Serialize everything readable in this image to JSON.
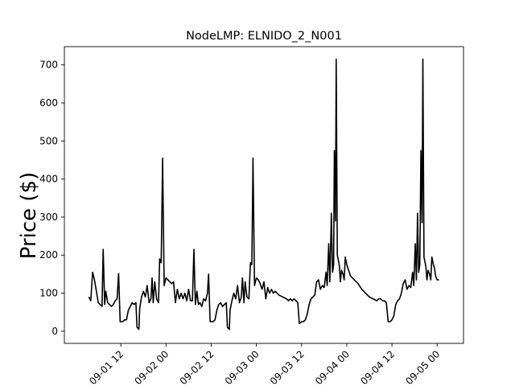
{
  "chart_data": {
    "type": "line",
    "title": "NodeLMP: ELNIDO_2_N001",
    "xlabel": "",
    "ylabel": "Price ($)",
    "x_tick_labels": [
      "09-01 12",
      "09-02 00",
      "09-02 12",
      "09-03 00",
      "09-03 12",
      "09-04 00",
      "09-04 12",
      "09-05 00"
    ],
    "x_ticks_hours": [
      12,
      24,
      36,
      48,
      60,
      72,
      84,
      96
    ],
    "y_tick_labels": [
      "0",
      "100",
      "200",
      "300",
      "400",
      "500",
      "600",
      "700"
    ],
    "y_ticks": [
      0,
      100,
      200,
      300,
      400,
      500,
      600,
      700
    ],
    "xlim_hours": [
      -3,
      103
    ],
    "ylim": [
      -32,
      748
    ],
    "grid": false,
    "line_color": "#000000",
    "series": [
      {
        "values": [
          [
            3.5,
            90
          ],
          [
            4.0,
            80
          ],
          [
            4.5,
            155
          ],
          [
            5.0,
            135
          ],
          [
            5.5,
            105
          ],
          [
            6.0,
            75
          ],
          [
            6.5,
            70
          ],
          [
            7.0,
            65
          ],
          [
            7.3,
            215
          ],
          [
            7.7,
            70
          ],
          [
            8.0,
            105
          ],
          [
            8.5,
            75
          ],
          [
            9.0,
            70
          ],
          [
            9.5,
            65
          ],
          [
            10.0,
            70
          ],
          [
            10.5,
            80
          ],
          [
            11.0,
            85
          ],
          [
            11.4,
            152
          ],
          [
            11.8,
            25
          ],
          [
            12.5,
            25
          ],
          [
            13.0,
            30
          ],
          [
            13.5,
            30
          ],
          [
            14.0,
            55
          ],
          [
            14.5,
            65
          ],
          [
            15.0,
            75
          ],
          [
            15.5,
            70
          ],
          [
            16.0,
            75
          ],
          [
            16.3,
            10
          ],
          [
            16.8,
            5
          ],
          [
            17.0,
            60
          ],
          [
            17.5,
            90
          ],
          [
            18.0,
            105
          ],
          [
            18.5,
            90
          ],
          [
            19.0,
            120
          ],
          [
            19.5,
            75
          ],
          [
            20.0,
            85
          ],
          [
            20.3,
            140
          ],
          [
            20.6,
            75
          ],
          [
            21.0,
            130
          ],
          [
            21.5,
            85
          ],
          [
            22.0,
            75
          ],
          [
            22.3,
            190
          ],
          [
            22.7,
            180
          ],
          [
            23.1,
            455
          ],
          [
            23.5,
            120
          ],
          [
            24.0,
            140
          ],
          [
            24.5,
            135
          ],
          [
            25.0,
            130
          ],
          [
            25.5,
            125
          ],
          [
            26.0,
            130
          ],
          [
            26.5,
            75
          ],
          [
            27.0,
            110
          ],
          [
            27.5,
            85
          ],
          [
            28.0,
            100
          ],
          [
            28.5,
            85
          ],
          [
            29.0,
            100
          ],
          [
            29.5,
            80
          ],
          [
            30.0,
            110
          ],
          [
            30.5,
            80
          ],
          [
            31.0,
            80
          ],
          [
            31.4,
            215
          ],
          [
            31.8,
            70
          ],
          [
            32.2,
            105
          ],
          [
            32.6,
            70
          ],
          [
            33.0,
            75
          ],
          [
            33.5,
            65
          ],
          [
            34.0,
            85
          ],
          [
            34.5,
            80
          ],
          [
            35.0,
            100
          ],
          [
            35.3,
            150
          ],
          [
            35.7,
            25
          ],
          [
            36.5,
            25
          ],
          [
            37.0,
            30
          ],
          [
            37.5,
            55
          ],
          [
            38.0,
            70
          ],
          [
            38.5,
            75
          ],
          [
            39.0,
            65
          ],
          [
            39.5,
            70
          ],
          [
            40.0,
            75
          ],
          [
            40.3,
            10
          ],
          [
            40.8,
            5
          ],
          [
            41.0,
            55
          ],
          [
            41.5,
            80
          ],
          [
            42.0,
            100
          ],
          [
            42.5,
            85
          ],
          [
            43.0,
            120
          ],
          [
            43.5,
            75
          ],
          [
            44.0,
            90
          ],
          [
            44.3,
            140
          ],
          [
            44.7,
            75
          ],
          [
            45.0,
            130
          ],
          [
            45.5,
            90
          ],
          [
            46.0,
            85
          ],
          [
            46.4,
            180
          ],
          [
            46.8,
            175
          ],
          [
            47.1,
            455
          ],
          [
            47.5,
            120
          ],
          [
            48.0,
            140
          ],
          [
            48.5,
            135
          ],
          [
            49.0,
            125
          ],
          [
            49.5,
            110
          ],
          [
            50.0,
            130
          ],
          [
            50.5,
            85
          ],
          [
            51.0,
            115
          ],
          [
            51.5,
            100
          ],
          [
            52.0,
            110
          ],
          [
            52.5,
            100
          ],
          [
            53.0,
            105
          ],
          [
            53.5,
            100
          ],
          [
            54.0,
            95
          ],
          [
            55.0,
            90
          ],
          [
            56.0,
            85
          ],
          [
            56.5,
            80
          ],
          [
            57.0,
            85
          ],
          [
            57.5,
            80
          ],
          [
            58.0,
            85
          ],
          [
            58.5,
            80
          ],
          [
            59.0,
            75
          ],
          [
            59.4,
            20
          ],
          [
            60.0,
            25
          ],
          [
            60.5,
            25
          ],
          [
            61.0,
            30
          ],
          [
            61.5,
            45
          ],
          [
            62.0,
            70
          ],
          [
            62.5,
            85
          ],
          [
            63.0,
            90
          ],
          [
            63.5,
            95
          ],
          [
            64.0,
            130
          ],
          [
            64.5,
            135
          ],
          [
            65.0,
            110
          ],
          [
            65.5,
            120
          ],
          [
            66.0,
            115
          ],
          [
            66.5,
            155
          ],
          [
            66.8,
            120
          ],
          [
            67.2,
            230
          ],
          [
            67.5,
            130
          ],
          [
            67.9,
            310
          ],
          [
            68.2,
            155
          ],
          [
            68.5,
            175
          ],
          [
            68.7,
            475
          ],
          [
            69.0,
            290
          ],
          [
            69.2,
            715
          ],
          [
            69.5,
            200
          ],
          [
            70.0,
            175
          ],
          [
            70.3,
            130
          ],
          [
            70.6,
            160
          ],
          [
            71.0,
            150
          ],
          [
            71.3,
            135
          ],
          [
            71.6,
            195
          ],
          [
            72.0,
            175
          ],
          [
            72.5,
            160
          ],
          [
            73.0,
            145
          ],
          [
            73.5,
            140
          ],
          [
            74.0,
            135
          ],
          [
            75.0,
            125
          ],
          [
            76.0,
            110
          ],
          [
            77.0,
            100
          ],
          [
            78.0,
            90
          ],
          [
            79.0,
            85
          ],
          [
            80.0,
            80
          ],
          [
            80.5,
            85
          ],
          [
            81.0,
            85
          ],
          [
            81.5,
            80
          ],
          [
            82.0,
            80
          ],
          [
            82.5,
            75
          ],
          [
            83.0,
            25
          ],
          [
            83.5,
            25
          ],
          [
            84.0,
            30
          ],
          [
            84.5,
            40
          ],
          [
            85.0,
            70
          ],
          [
            85.5,
            80
          ],
          [
            86.0,
            85
          ],
          [
            86.5,
            100
          ],
          [
            87.0,
            125
          ],
          [
            87.5,
            135
          ],
          [
            88.0,
            110
          ],
          [
            88.5,
            120
          ],
          [
            89.0,
            115
          ],
          [
            89.5,
            155
          ],
          [
            89.8,
            120
          ],
          [
            90.2,
            230
          ],
          [
            90.5,
            135
          ],
          [
            90.8,
            310
          ],
          [
            91.1,
            155
          ],
          [
            91.4,
            175
          ],
          [
            91.7,
            475
          ],
          [
            92.0,
            285
          ],
          [
            92.2,
            715
          ],
          [
            92.5,
            195
          ],
          [
            93.0,
            170
          ],
          [
            93.3,
            135
          ],
          [
            93.6,
            160
          ],
          [
            94.0,
            150
          ],
          [
            94.3,
            135
          ],
          [
            94.6,
            195
          ],
          [
            95.0,
            175
          ],
          [
            95.3,
            165
          ],
          [
            95.6,
            145
          ],
          [
            96.0,
            135
          ],
          [
            96.5,
            135
          ]
        ]
      }
    ]
  }
}
